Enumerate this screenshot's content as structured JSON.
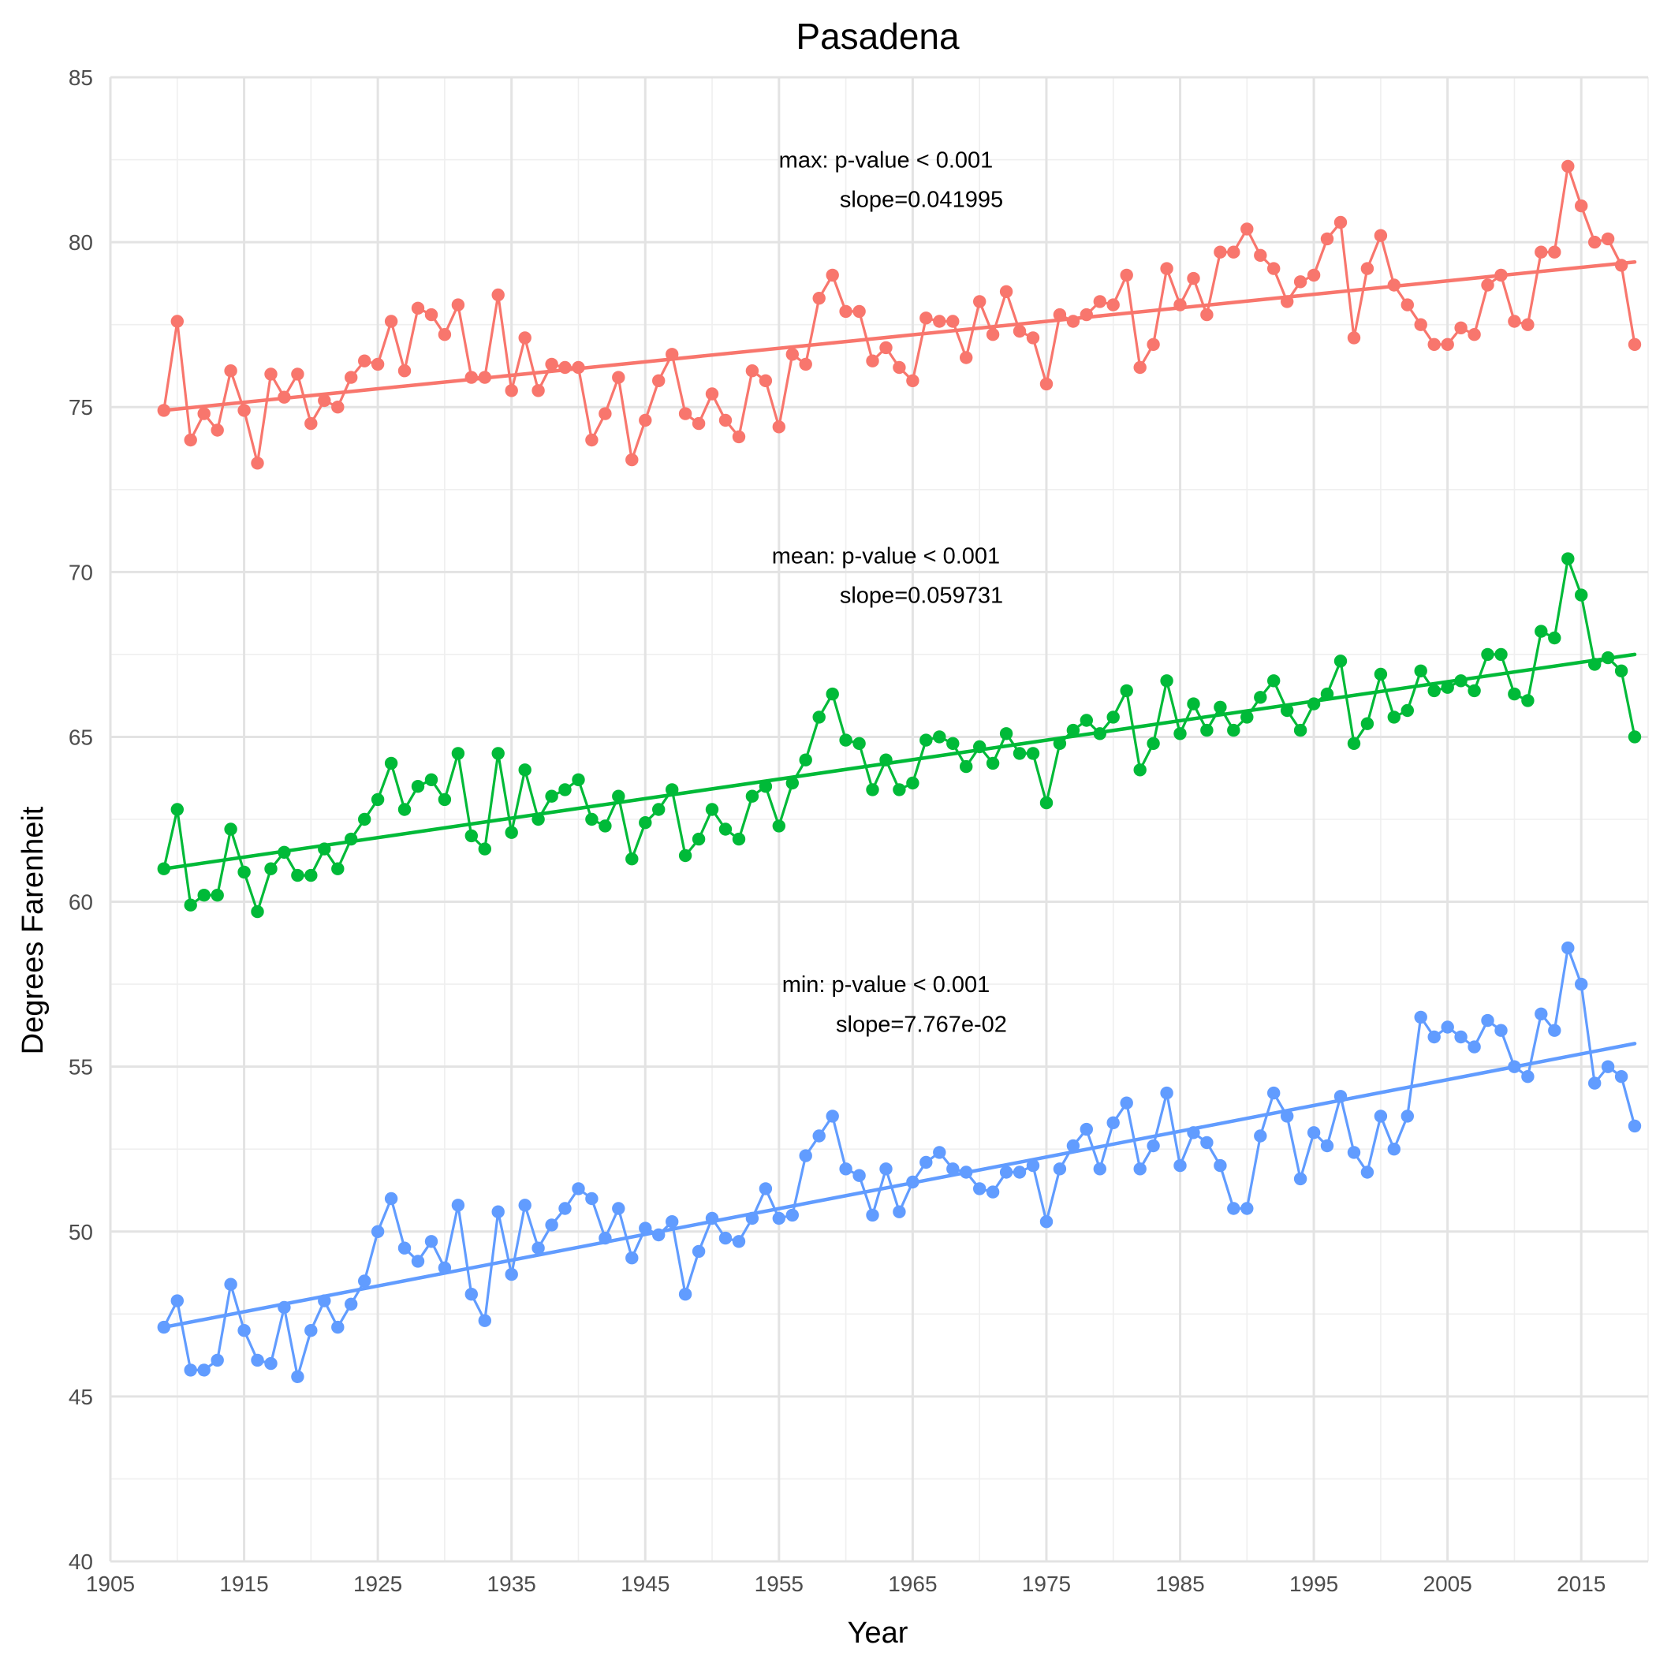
{
  "colors": {
    "max": "#F8766D",
    "mean": "#00BA38",
    "min": "#619CFF"
  },
  "chart_data": {
    "type": "line",
    "title": "Pasadena",
    "xlabel": "Year",
    "ylabel": "Degrees Farenheit",
    "xlim": [
      1905,
      2020
    ],
    "ylim": [
      40,
      85
    ],
    "x_ticks": [
      1905,
      1915,
      1925,
      1935,
      1945,
      1955,
      1965,
      1975,
      1985,
      1995,
      2005,
      2015
    ],
    "y_ticks": [
      40,
      45,
      50,
      55,
      60,
      65,
      70,
      75,
      80,
      85
    ],
    "grid": true,
    "legend": "none",
    "x_start": 1909,
    "series": [
      {
        "key": "max",
        "values": [
          74.9,
          77.6,
          74.0,
          74.8,
          74.3,
          76.1,
          74.9,
          73.3,
          76.0,
          75.3,
          76.0,
          74.5,
          75.2,
          75.0,
          75.9,
          76.4,
          76.3,
          77.6,
          76.1,
          78.0,
          77.8,
          77.2,
          78.1,
          75.9,
          75.9,
          78.4,
          75.5,
          77.1,
          75.5,
          76.3,
          76.2,
          76.2,
          74.0,
          74.8,
          75.9,
          73.4,
          74.6,
          75.8,
          76.6,
          74.8,
          74.5,
          75.4,
          74.6,
          74.1,
          76.1,
          75.8,
          74.4,
          76.6,
          76.3,
          78.3,
          79.0,
          77.9,
          77.9,
          76.4,
          76.8,
          76.2,
          75.8,
          77.7,
          77.6,
          77.6,
          76.5,
          78.2,
          77.2,
          78.5,
          77.3,
          77.1,
          75.7,
          77.8,
          77.6,
          77.8,
          78.2,
          78.1,
          79.0,
          76.2,
          76.9,
          79.2,
          78.1,
          78.9,
          77.8,
          79.7,
          79.7,
          80.4,
          79.6,
          79.2,
          78.2,
          78.8,
          79.0,
          80.1,
          80.6,
          77.1,
          79.2,
          80.2,
          78.7,
          78.1,
          77.5,
          76.9,
          76.9,
          77.4,
          77.2,
          78.7,
          79.0,
          77.6,
          77.5,
          79.7,
          79.7,
          82.3,
          81.1,
          80.0,
          80.1,
          79.3,
          76.9
        ],
        "trend": [
          74.9,
          79.4
        ],
        "annotation": {
          "line1": "max: p-value < 0.001",
          "line2": "slope=0.041995",
          "x": 1963,
          "y1": 82.5,
          "y2": 81.3
        }
      },
      {
        "key": "mean",
        "values": [
          61.0,
          62.8,
          59.9,
          60.2,
          60.2,
          62.2,
          60.9,
          59.7,
          61.0,
          61.5,
          60.8,
          60.8,
          61.6,
          61.0,
          61.9,
          62.5,
          63.1,
          64.2,
          62.8,
          63.5,
          63.7,
          63.1,
          64.5,
          62.0,
          61.6,
          64.5,
          62.1,
          64.0,
          62.5,
          63.2,
          63.4,
          63.7,
          62.5,
          62.3,
          63.2,
          61.3,
          62.4,
          62.8,
          63.4,
          61.4,
          61.9,
          62.8,
          62.2,
          61.9,
          63.2,
          63.5,
          62.3,
          63.6,
          64.3,
          65.6,
          66.3,
          64.9,
          64.8,
          63.4,
          64.3,
          63.4,
          63.6,
          64.9,
          65.0,
          64.8,
          64.1,
          64.7,
          64.2,
          65.1,
          64.5,
          64.5,
          63.0,
          64.8,
          65.2,
          65.5,
          65.1,
          65.6,
          66.4,
          64.0,
          64.8,
          66.7,
          65.1,
          66.0,
          65.2,
          65.9,
          65.2,
          65.6,
          66.2,
          66.7,
          65.8,
          65.2,
          66.0,
          66.3,
          67.3,
          64.8,
          65.4,
          66.9,
          65.6,
          65.8,
          67.0,
          66.4,
          66.5,
          66.7,
          66.4,
          67.5,
          67.5,
          66.3,
          66.1,
          68.2,
          68.0,
          70.4,
          69.3,
          67.2,
          67.4,
          67.0,
          65.0
        ],
        "trend": [
          61.0,
          67.5
        ],
        "annotation": {
          "line1": "mean: p-value < 0.001",
          "line2": "slope=0.059731",
          "x": 1963,
          "y1": 70.5,
          "y2": 69.3
        }
      },
      {
        "key": "min",
        "values": [
          47.1,
          47.9,
          45.8,
          45.8,
          46.1,
          48.4,
          47.0,
          46.1,
          46.0,
          47.7,
          45.6,
          47.0,
          47.9,
          47.1,
          47.8,
          48.5,
          50.0,
          51.0,
          49.5,
          49.1,
          49.7,
          48.9,
          50.8,
          48.1,
          47.3,
          50.6,
          48.7,
          50.8,
          49.5,
          50.2,
          50.7,
          51.3,
          51.0,
          49.8,
          50.7,
          49.2,
          50.1,
          49.9,
          50.3,
          48.1,
          49.4,
          50.4,
          49.8,
          49.7,
          50.4,
          51.3,
          50.4,
          50.5,
          52.3,
          52.9,
          53.5,
          51.9,
          51.7,
          50.5,
          51.9,
          50.6,
          51.5,
          52.1,
          52.4,
          51.9,
          51.8,
          51.3,
          51.2,
          51.8,
          51.8,
          52.0,
          50.3,
          51.9,
          52.6,
          53.1,
          51.9,
          53.3,
          53.9,
          51.9,
          52.6,
          54.2,
          52.0,
          53.0,
          52.7,
          52.0,
          50.7,
          50.7,
          52.9,
          54.2,
          53.5,
          51.6,
          53.0,
          52.6,
          54.1,
          52.4,
          51.8,
          53.5,
          52.5,
          53.5,
          56.5,
          55.9,
          56.2,
          55.9,
          55.6,
          56.4,
          56.1,
          55.0,
          54.7,
          56.6,
          56.1,
          58.6,
          57.5,
          54.5,
          55.0,
          54.7,
          53.2
        ],
        "trend": [
          47.1,
          55.7
        ],
        "annotation": {
          "line1": "min: p-value < 0.001",
          "line2": "slope=7.767e-02",
          "x": 1963,
          "y1": 57.5,
          "y2": 56.3
        }
      }
    ]
  }
}
